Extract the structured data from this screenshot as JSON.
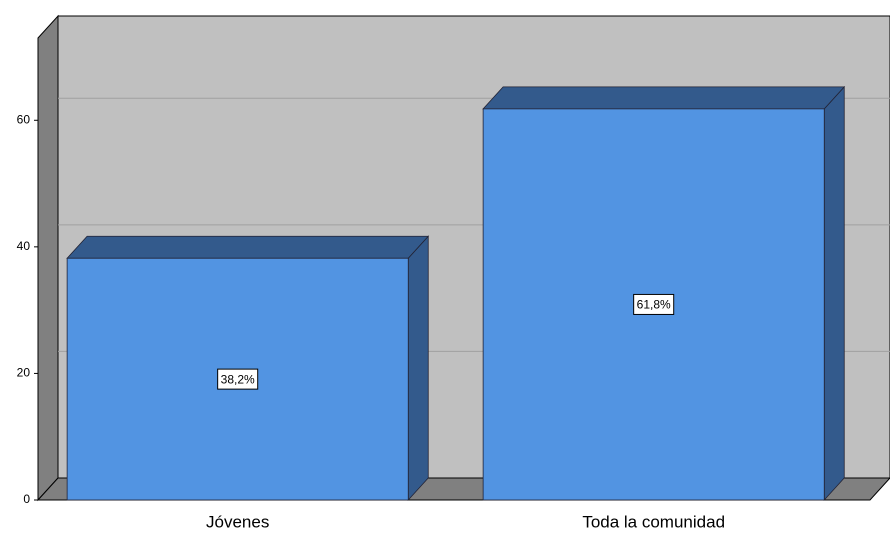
{
  "chart_data": {
    "type": "bar",
    "categories": [
      "Jóvenes",
      "Toda la comunidad"
    ],
    "values": [
      38.2,
      61.8
    ],
    "value_labels": [
      "38,2%",
      "61,8%"
    ],
    "color": "#5294e2",
    "ylim": [
      0,
      73
    ],
    "yticks": [
      0,
      20,
      40,
      60
    ],
    "grid": true
  }
}
